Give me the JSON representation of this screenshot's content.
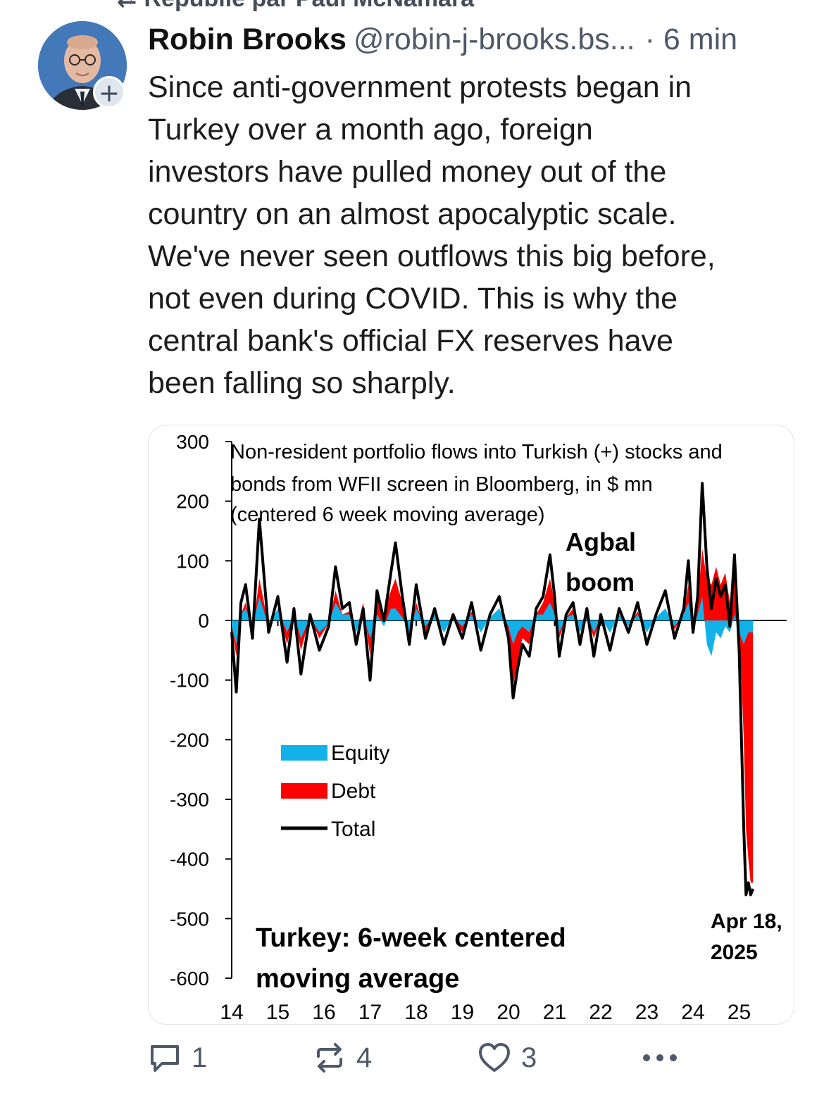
{
  "repost_banner": {
    "text": "Republié par Paul McNamara"
  },
  "post": {
    "author_name": "Robin Brooks",
    "author_handle": "@robin-j-brooks.bs...",
    "time": "· 6 min",
    "text": "Since anti-government protests began in\nTurkey over a month ago, foreign\ninvestors have pulled money out of the\ncountry on an almost apocalyptic scale.\nWe've never seen outflows this big before,\nnot even during COVID. This is why the\ncentral bank's official FX reserves have\nbeen falling so sharply."
  },
  "actions": {
    "replies": "1",
    "reposts": "4",
    "likes": "3"
  },
  "colors": {
    "equity": "#12b2e8",
    "debt": "#ff0000",
    "total": "#000000",
    "text_secondary": "#4e5868"
  },
  "chart_data": {
    "type": "area",
    "title_lines": [
      "Non-resident portfolio flows into Turkish (+) stocks and",
      "bonds from WFII screen in Bloomberg, in $ mn",
      "(centered 6 week moving average)"
    ],
    "subtitle_lines": [
      "Turkey: 6-week centered",
      "moving average"
    ],
    "annotation_agbal": [
      "Agbal",
      "boom"
    ],
    "annotation_date": [
      "Apr 18,",
      "2025"
    ],
    "ylim": [
      -600,
      300
    ],
    "y_ticks": [
      300,
      200,
      100,
      0,
      -100,
      -200,
      -300,
      -400,
      -500,
      -600
    ],
    "xlim": [
      14,
      25.5
    ],
    "x_ticks": [
      "14",
      "15",
      "16",
      "17",
      "18",
      "19",
      "20",
      "21",
      "22",
      "23",
      "24",
      "25"
    ],
    "legend": [
      "Equity",
      "Debt",
      "Total"
    ],
    "x": [
      14.0,
      14.1,
      14.2,
      14.3,
      14.45,
      14.6,
      14.8,
      15.0,
      15.2,
      15.35,
      15.5,
      15.7,
      15.9,
      16.1,
      16.25,
      16.4,
      16.55,
      16.7,
      16.85,
      17.0,
      17.15,
      17.3,
      17.45,
      17.55,
      17.7,
      17.85,
      18.0,
      18.2,
      18.4,
      18.6,
      18.8,
      19.0,
      19.2,
      19.4,
      19.6,
      19.8,
      20.0,
      20.1,
      20.2,
      20.3,
      20.45,
      20.6,
      20.75,
      20.9,
      21.0,
      21.1,
      21.25,
      21.4,
      21.55,
      21.7,
      21.85,
      22.0,
      22.2,
      22.4,
      22.6,
      22.8,
      23.0,
      23.2,
      23.4,
      23.6,
      23.8,
      23.9,
      24.0,
      24.1,
      24.2,
      24.3,
      24.4,
      24.5,
      24.6,
      24.7,
      24.8,
      24.9,
      25.0,
      25.05,
      25.1,
      25.15,
      25.2,
      25.25,
      25.3
    ],
    "series": [
      {
        "name": "Total",
        "values": [
          -20,
          -120,
          30,
          60,
          -30,
          170,
          -20,
          40,
          -70,
          20,
          -90,
          10,
          -50,
          -10,
          90,
          20,
          30,
          -40,
          20,
          -100,
          50,
          0,
          80,
          130,
          40,
          -40,
          60,
          -30,
          20,
          -40,
          10,
          -30,
          30,
          -50,
          10,
          40,
          -30,
          -130,
          -80,
          -40,
          -60,
          20,
          40,
          110,
          40,
          -60,
          10,
          30,
          -40,
          20,
          -60,
          10,
          -50,
          20,
          -20,
          30,
          -40,
          10,
          50,
          -30,
          20,
          100,
          -20,
          40,
          230,
          90,
          20,
          70,
          40,
          60,
          -10,
          110,
          -50,
          -200,
          -350,
          -460,
          -440,
          -460,
          -450
        ]
      },
      {
        "name": "Debt",
        "values": [
          -10,
          -60,
          10,
          30,
          -20,
          70,
          -10,
          20,
          -40,
          10,
          -50,
          5,
          -30,
          -5,
          50,
          10,
          15,
          -20,
          30,
          -60,
          40,
          10,
          50,
          70,
          30,
          -20,
          30,
          -20,
          10,
          -20,
          5,
          -20,
          15,
          -20,
          5,
          20,
          -20,
          -110,
          -70,
          -30,
          -40,
          10,
          30,
          70,
          30,
          -30,
          5,
          20,
          -20,
          10,
          -30,
          5,
          -20,
          10,
          -10,
          15,
          -20,
          5,
          20,
          -15,
          10,
          60,
          -10,
          30,
          120,
          70,
          60,
          90,
          60,
          80,
          30,
          80,
          -20,
          -100,
          -200,
          -350,
          -400,
          -440,
          -440
        ]
      },
      {
        "name": "Equity",
        "values": [
          -10,
          -40,
          10,
          20,
          -10,
          40,
          -10,
          20,
          -20,
          10,
          -30,
          5,
          -20,
          -5,
          30,
          10,
          10,
          -20,
          10,
          -30,
          10,
          -10,
          20,
          20,
          5,
          -20,
          20,
          -10,
          10,
          -20,
          5,
          -10,
          10,
          -20,
          5,
          20,
          -10,
          -40,
          -20,
          -10,
          -20,
          10,
          10,
          30,
          10,
          -20,
          5,
          10,
          -20,
          10,
          -20,
          5,
          -20,
          10,
          -10,
          10,
          -20,
          5,
          20,
          -10,
          10,
          30,
          -10,
          10,
          40,
          -40,
          -60,
          -20,
          -30,
          -10,
          -20,
          10,
          -20,
          -30,
          -40,
          -30,
          -20,
          -20,
          -20
        ]
      }
    ]
  }
}
